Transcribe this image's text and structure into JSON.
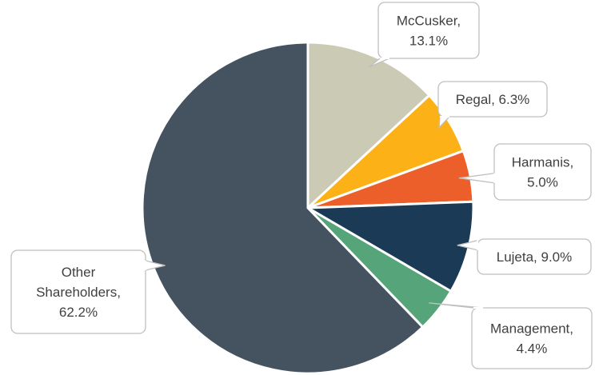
{
  "chart_data": {
    "type": "pie",
    "title": "",
    "start_angle_deg": 0,
    "direction": "clockwise",
    "legend": "none",
    "slices": [
      {
        "label": "McCusker",
        "value": 13.1,
        "color": "#cbcab5",
        "data_label": [
          "McCusker,",
          "13.1%"
        ]
      },
      {
        "label": "Regal",
        "value": 6.3,
        "color": "#fcb217",
        "data_label": [
          "Regal, 6.3%"
        ]
      },
      {
        "label": "Harmanis",
        "value": 5.0,
        "color": "#ec5f2b",
        "data_label": [
          "Harmanis,",
          "5.0%"
        ]
      },
      {
        "label": "Lujeta",
        "value": 9.0,
        "color": "#1a3a56",
        "data_label": [
          "Lujeta, 9.0%"
        ]
      },
      {
        "label": "Management",
        "value": 4.4,
        "color": "#56a57a",
        "data_label": [
          "Management,",
          "4.4%"
        ]
      },
      {
        "label": "Other Shareholders",
        "value": 62.2,
        "color": "#44535f",
        "data_label": [
          "Other",
          "Shareholders,",
          "62.2%"
        ]
      }
    ]
  }
}
